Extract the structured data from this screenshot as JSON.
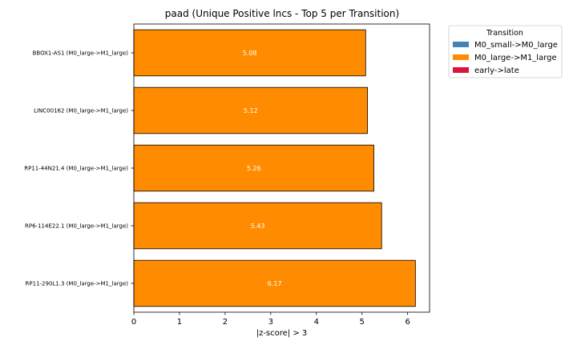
{
  "chart_data": {
    "type": "bar",
    "orientation": "horizontal",
    "title": "paad (Unique Positive lncs - Top 5 per Transition)",
    "xlabel": "|z-score| > 3",
    "ylabel": "",
    "xlim": [
      0,
      6.48
    ],
    "xticks": [
      "0",
      "1",
      "2",
      "3",
      "4",
      "5",
      "6"
    ],
    "categories": [
      "BBOX1-AS1 (M0_large->M1_large)",
      "LINC00162 (M0_large->M1_large)",
      "RP11-44N21.4 (M0_large->M1_large)",
      "RP6-114E22.1 (M0_large->M1_large)",
      "RP11-290L1.3 (M0_large->M1_large)"
    ],
    "values": [
      5.08,
      5.12,
      5.26,
      5.43,
      6.17
    ],
    "value_labels": [
      "5.08",
      "5.12",
      "5.26",
      "5.43",
      "6.17"
    ],
    "bar_colors": [
      "#ff8c00",
      "#ff8c00",
      "#ff8c00",
      "#ff8c00",
      "#ff8c00"
    ],
    "grid": false,
    "legend": {
      "title": "Transition",
      "placement": "outside-upper-right",
      "entries": [
        {
          "label": "M0_small->M0_large",
          "color": "#4682b4"
        },
        {
          "label": "M0_large->M1_large",
          "color": "#ff8c00"
        },
        {
          "label": "early->late",
          "color": "#dc143c"
        }
      ]
    }
  }
}
